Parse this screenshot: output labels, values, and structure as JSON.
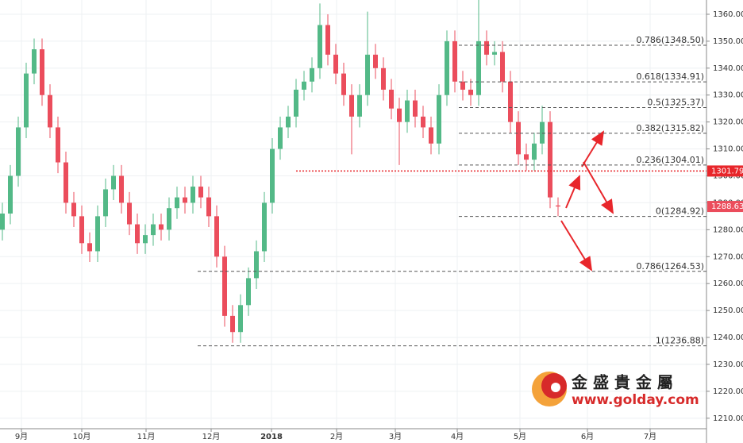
{
  "chart_data": {
    "type": "candlestick",
    "open": [
      1280,
      1286,
      1300,
      1318,
      1338,
      1347,
      1330,
      1318,
      1305,
      1290,
      1285,
      1275,
      1272,
      1285,
      1295,
      1300,
      1290,
      1282,
      1275,
      1278,
      1282,
      1280,
      1288,
      1292,
      1290,
      1296,
      1292,
      1285,
      1270,
      1248,
      1242,
      1252,
      1262,
      1272,
      1290,
      1310,
      1318,
      1322,
      1332,
      1335,
      1340,
      1356,
      1345,
      1338,
      1330,
      1322,
      1330,
      1345,
      1340,
      1332,
      1325,
      1320,
      1328,
      1322,
      1318,
      1312,
      1330,
      1350,
      1335,
      1332,
      1330,
      1350,
      1345,
      1346,
      1335,
      1320,
      1308,
      1306,
      1312,
      1320,
      1289
    ],
    "high": [
      1290,
      1304,
      1322,
      1342,
      1351,
      1351,
      1334,
      1322,
      1309,
      1294,
      1289,
      1279,
      1289,
      1299,
      1304,
      1304,
      1294,
      1286,
      1282,
      1286,
      1286,
      1292,
      1296,
      1296,
      1300,
      1300,
      1296,
      1289,
      1274,
      1252,
      1256,
      1266,
      1276,
      1294,
      1314,
      1322,
      1326,
      1336,
      1339,
      1344,
      1364,
      1360,
      1349,
      1342,
      1334,
      1334,
      1361,
      1349,
      1344,
      1336,
      1329,
      1332,
      1332,
      1326,
      1322,
      1334,
      1354,
      1354,
      1339,
      1336,
      1366,
      1354,
      1350,
      1350,
      1339,
      1324,
      1312,
      1316,
      1326,
      1324,
      1292
    ],
    "low": [
      1276,
      1282,
      1296,
      1314,
      1334,
      1326,
      1314,
      1301,
      1286,
      1281,
      1271,
      1268,
      1268,
      1281,
      1291,
      1286,
      1278,
      1271,
      1271,
      1274,
      1276,
      1276,
      1284,
      1286,
      1286,
      1288,
      1281,
      1266,
      1244,
      1238,
      1238,
      1248,
      1258,
      1268,
      1286,
      1306,
      1314,
      1318,
      1328,
      1331,
      1336,
      1341,
      1334,
      1326,
      1308,
      1318,
      1326,
      1336,
      1328,
      1321,
      1304,
      1316,
      1318,
      1314,
      1308,
      1308,
      1326,
      1331,
      1328,
      1326,
      1326,
      1341,
      1341,
      1331,
      1316,
      1304,
      1302,
      1302,
      1308,
      1288,
      1285
    ],
    "close": [
      1286,
      1300,
      1318,
      1338,
      1347,
      1330,
      1318,
      1305,
      1290,
      1285,
      1275,
      1272,
      1285,
      1295,
      1300,
      1290,
      1282,
      1275,
      1278,
      1282,
      1280,
      1288,
      1292,
      1290,
      1296,
      1292,
      1285,
      1270,
      1248,
      1242,
      1252,
      1262,
      1272,
      1290,
      1310,
      1318,
      1322,
      1332,
      1335,
      1340,
      1356,
      1345,
      1338,
      1330,
      1322,
      1330,
      1345,
      1340,
      1332,
      1325,
      1320,
      1328,
      1322,
      1318,
      1312,
      1330,
      1350,
      1335,
      1332,
      1330,
      1350,
      1345,
      1346,
      1335,
      1320,
      1308,
      1306,
      1312,
      1320,
      1292,
      1288.63
    ],
    "up_color": "#53b987",
    "down_color": "#eb4d5c",
    "xlim": [
      -0.3,
      88.7
    ],
    "xticks": [
      {
        "value": 2.4,
        "label": "9月"
      },
      {
        "value": 10,
        "label": "10月"
      },
      {
        "value": 18.1,
        "label": "11月"
      },
      {
        "value": 26.3,
        "label": "12月"
      },
      {
        "value": 33.9,
        "label": "2018"
      },
      {
        "value": 42.1,
        "label": "2月"
      },
      {
        "value": 49.5,
        "label": "3月"
      },
      {
        "value": 57.3,
        "label": "4月"
      },
      {
        "value": 65.2,
        "label": "5月"
      },
      {
        "value": 73.7,
        "label": "6月"
      },
      {
        "value": 81.6,
        "label": "7月"
      }
    ],
    "ylim": [
      1206.1,
      1365.3
    ],
    "yticks": [
      {
        "value": 1210,
        "label": "1210.00"
      },
      {
        "value": 1220,
        "label": "1220.00"
      },
      {
        "value": 1230,
        "label": "1230.00"
      },
      {
        "value": 1240,
        "label": "1240.00"
      },
      {
        "value": 1250,
        "label": "1250.00"
      },
      {
        "value": 1260,
        "label": "1260.00"
      },
      {
        "value": 1270,
        "label": "1270.00"
      },
      {
        "value": 1280,
        "label": "1280.00"
      },
      {
        "value": 1290,
        "label": "1290.00"
      },
      {
        "value": 1300,
        "label": "1300.00"
      },
      {
        "value": 1310,
        "label": "1310.00"
      },
      {
        "value": 1320,
        "label": "1320.00"
      },
      {
        "value": 1330,
        "label": "1330.00"
      },
      {
        "value": 1340,
        "label": "1340.00"
      },
      {
        "value": 1350,
        "label": "1350.00"
      },
      {
        "value": 1360,
        "label": "1360.00"
      }
    ],
    "grid": true,
    "fib_levels": [
      {
        "label": "0.786(1348.50)",
        "value": 1348.5,
        "start": 57.5
      },
      {
        "label": "0.618(1334.91)",
        "value": 1334.91,
        "start": 57.5
      },
      {
        "label": "0.5(1325.37)",
        "value": 1325.37,
        "start": 57.5
      },
      {
        "label": "0.382(1315.82)",
        "value": 1315.82,
        "start": 57.5
      },
      {
        "label": "0.236(1304.01)",
        "value": 1304.01,
        "start": 57.5
      },
      {
        "label": "0(1284.92)",
        "value": 1284.92,
        "start": 57.5
      },
      {
        "label": "0.786(1264.53)",
        "value": 1264.53,
        "start": 24.6
      },
      {
        "label": "1(1236.88)",
        "value": 1236.88,
        "start": 24.6
      }
    ],
    "hline": {
      "value": 1301.79,
      "start": 37,
      "color": "#e8262b"
    },
    "last_price": 1288.63,
    "logo": {
      "name": "金 盛 貴 金 屬",
      "url": "www.golday.com"
    }
  }
}
